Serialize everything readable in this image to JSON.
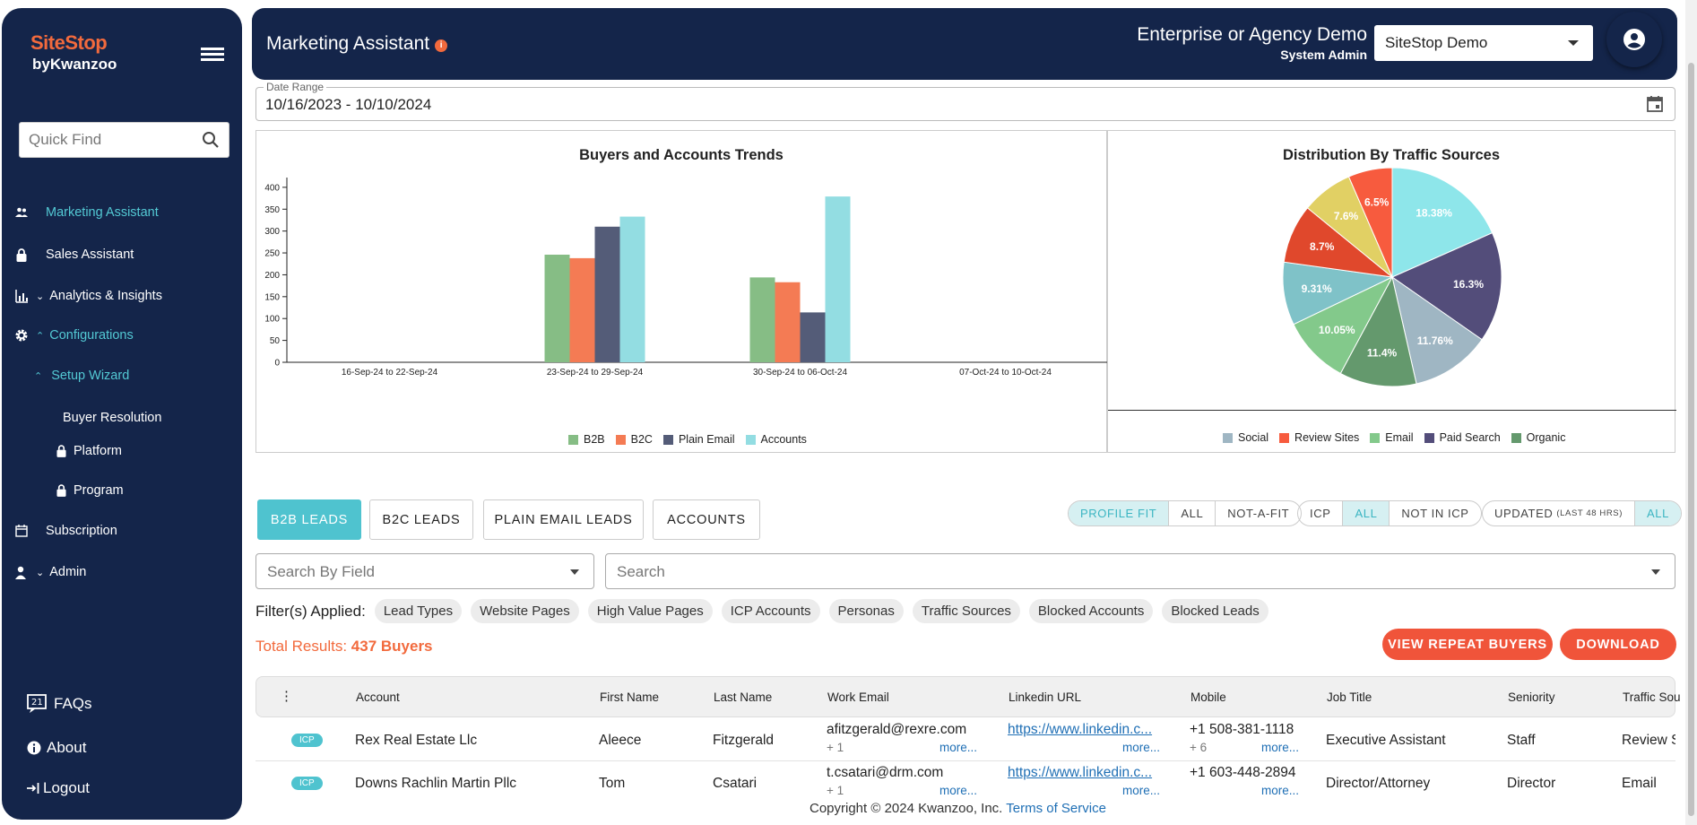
{
  "sidebar": {
    "logo_line1": "SiteStop",
    "logo_line2": "byKwanzoo",
    "quick_find_placeholder": "Quick Find",
    "items": [
      {
        "label": "Marketing Assistant",
        "icon": "users-icon"
      },
      {
        "label": "Sales Assistant",
        "icon": "lock-icon"
      },
      {
        "label": "Analytics & Insights",
        "icon": "bar-chart-icon"
      },
      {
        "label": "Configurations",
        "icon": "gear-icon"
      },
      {
        "label": "Setup Wizard"
      },
      {
        "label": "Buyer Resolution"
      },
      {
        "label": "Platform",
        "icon": "lock-icon"
      },
      {
        "label": "Program",
        "icon": "lock-icon"
      },
      {
        "label": "Subscription",
        "icon": "calendar-icon"
      },
      {
        "label": "Admin",
        "icon": "user-icon"
      }
    ],
    "bottom": {
      "faqs": "FAQs",
      "about": "About",
      "logout": "Logout"
    },
    "colors": {
      "bg": "#14254a",
      "active": "#53c9d4",
      "brand": "#f26a3d"
    }
  },
  "header": {
    "title": "Marketing Assistant",
    "info_icon": "i",
    "org_name": "Enterprise or Agency Demo",
    "role": "System Admin",
    "account_select": "SiteStop Demo"
  },
  "date_range": {
    "label": "Date Range",
    "value": "10/16/2023 - 10/10/2024"
  },
  "chart_data": [
    {
      "type": "bar",
      "title": "Buyers and Accounts Trends",
      "categories": [
        "16-Sep-24 to 22-Sep-24",
        "23-Sep-24 to 29-Sep-24",
        "30-Sep-24 to 06-Oct-24",
        "07-Oct-24 to 10-Oct-24"
      ],
      "series": [
        {
          "name": "B2B",
          "color": "#86bd85",
          "values": [
            0,
            246,
            194,
            0
          ]
        },
        {
          "name": "B2C",
          "color": "#f47b54",
          "values": [
            0,
            238,
            183,
            0
          ]
        },
        {
          "name": "Plain Email",
          "color": "#545c78",
          "values": [
            0,
            310,
            114,
            0
          ]
        },
        {
          "name": "Accounts",
          "color": "#93dde2",
          "values": [
            0,
            333,
            379,
            0
          ]
        }
      ],
      "yticks": [
        0,
        50,
        100,
        150,
        200,
        250,
        300,
        350,
        400
      ],
      "ylim": [
        0,
        410
      ],
      "legend": "bottom"
    },
    {
      "type": "pie",
      "title": "Distribution By Traffic Sources",
      "slices": [
        {
          "label": "18.38%",
          "value": 18.38,
          "color": "#8ee6ea"
        },
        {
          "label": "16.3%",
          "value": 16.3,
          "color": "#534d7a"
        },
        {
          "label": "11.76%",
          "value": 11.76,
          "color": "#9fb6c3"
        },
        {
          "label": "11.4%",
          "value": 11.4,
          "color": "#64996d"
        },
        {
          "label": "10.05%",
          "value": 10.05,
          "color": "#83c98b"
        },
        {
          "label": "9.31%",
          "value": 9.31,
          "color": "#7fc2c8"
        },
        {
          "label": "8.7%",
          "value": 8.7,
          "color": "#e0482c"
        },
        {
          "label": "7.6%",
          "value": 7.6,
          "color": "#e1d064"
        },
        {
          "label": "6.5%",
          "value": 6.5,
          "color": "#f75b3e"
        }
      ],
      "legend_items": [
        {
          "name": "Social",
          "color": "#9fb6c3"
        },
        {
          "name": "Review Sites",
          "color": "#f75b3e"
        },
        {
          "name": "Email",
          "color": "#83c98b"
        },
        {
          "name": "Paid Search",
          "color": "#534d7a"
        },
        {
          "name": "Organic",
          "color": "#64996d"
        }
      ],
      "legend": "bottom"
    }
  ],
  "tabs": [
    "B2B LEADS",
    "B2C LEADS",
    "PLAIN EMAIL LEADS",
    "ACCOUNTS"
  ],
  "toggles": {
    "fit": [
      "PROFILE FIT",
      "ALL",
      "NOT-A-FIT"
    ],
    "icp": [
      "ICP",
      "ALL",
      "NOT IN ICP"
    ],
    "updated": [
      "UPDATED",
      "(LAST 48 HRS)",
      "ALL"
    ]
  },
  "search": {
    "field_placeholder": "Search By Field",
    "search_placeholder": "Search"
  },
  "filters": {
    "label": "Filter(s) Applied:",
    "chips": [
      "Lead Types",
      "Website Pages",
      "High Value Pages",
      "ICP Accounts",
      "Personas",
      "Traffic Sources",
      "Blocked Accounts",
      "Blocked Leads"
    ]
  },
  "results": {
    "label": "Total Results:",
    "count": "437 Buyers"
  },
  "buttons": {
    "repeat": "VIEW REPEAT BUYERS",
    "download": "DOWNLOAD"
  },
  "table": {
    "menu_icon": "⋮",
    "columns": [
      "Account",
      "First Name",
      "Last Name",
      "Work Email",
      "Linkedin URL",
      "Mobile",
      "Job Title",
      "Seniority",
      "Traffic Sou"
    ],
    "rows": [
      {
        "badge": "ICP",
        "account": "Rex Real Estate Llc",
        "first": "Aleece",
        "last": "Fitzgerald",
        "email": "afitzgerald@rexre.com",
        "email_more_count": "+ 1",
        "more": "more...",
        "linkedin": "https://www.linkedin.c...",
        "mobile": "+1 508-381-1118",
        "mobile_more_count": "+ 6",
        "job": "Executive Assistant",
        "seniority": "Staff",
        "traffic": "Review S"
      },
      {
        "badge": "ICP",
        "account": "Downs Rachlin Martin Pllc",
        "first": "Tom",
        "last": "Csatari",
        "email": "t.csatari@drm.com",
        "email_more_count": "+ 1",
        "more": "more...",
        "linkedin": "https://www.linkedin.c...",
        "mobile": "+1 603-448-2894",
        "mobile_more_count": "",
        "job": "Director/Attorney",
        "seniority": "Director",
        "traffic": "Email"
      }
    ]
  },
  "footer": {
    "copyright": "Copyright © 2024 Kwanzoo, Inc. ",
    "terms": "Terms of Service"
  }
}
